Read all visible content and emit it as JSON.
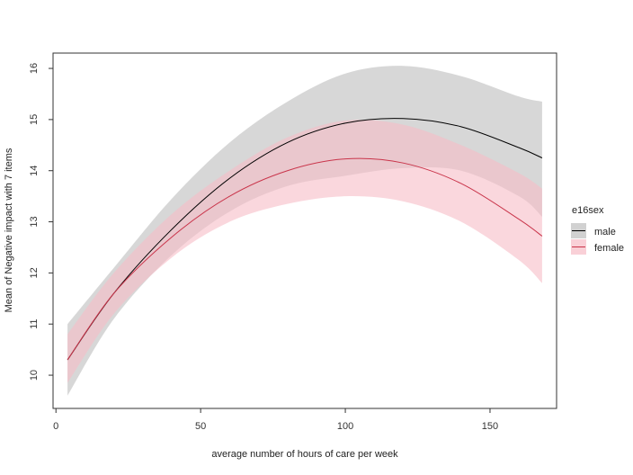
{
  "chart_data": {
    "type": "line",
    "xlabel": "average number of hours of care per week",
    "ylabel": "Mean of Negative impact with 7 items",
    "xlim": [
      -1,
      173
    ],
    "ylim": [
      9.35,
      16.3
    ],
    "xticks": [
      0,
      50,
      100,
      150
    ],
    "yticks": [
      10,
      11,
      12,
      13,
      14,
      15,
      16
    ],
    "grid": false,
    "legend": {
      "title": "e16sex",
      "position": "right"
    },
    "series": [
      {
        "name": "male",
        "color": "#000000",
        "band_color": "#bdbdbd",
        "x": [
          4,
          20,
          40,
          60,
          80,
          100,
          120,
          140,
          160,
          168
        ],
        "y": [
          10.3,
          11.6,
          12.85,
          13.85,
          14.55,
          14.93,
          15.02,
          14.86,
          14.45,
          14.25
        ],
        "lower": [
          9.6,
          11.1,
          12.35,
          13.2,
          13.7,
          13.9,
          14.05,
          14.0,
          13.5,
          13.1
        ],
        "upper": [
          11.0,
          12.1,
          13.45,
          14.55,
          15.35,
          15.9,
          16.05,
          15.85,
          15.45,
          15.35
        ]
      },
      {
        "name": "female",
        "color": "#c9344a",
        "band_color": "#f7bcc6",
        "x": [
          4,
          20,
          40,
          60,
          80,
          100,
          120,
          140,
          160,
          168
        ],
        "y": [
          10.3,
          11.6,
          12.7,
          13.5,
          14.0,
          14.23,
          14.15,
          13.75,
          13.05,
          12.72
        ],
        "lower": [
          9.85,
          11.2,
          12.3,
          13.0,
          13.35,
          13.5,
          13.4,
          13.0,
          12.25,
          11.8
        ],
        "upper": [
          10.8,
          12.0,
          13.15,
          14.0,
          14.65,
          14.98,
          14.9,
          14.5,
          13.95,
          13.65
        ]
      }
    ]
  }
}
